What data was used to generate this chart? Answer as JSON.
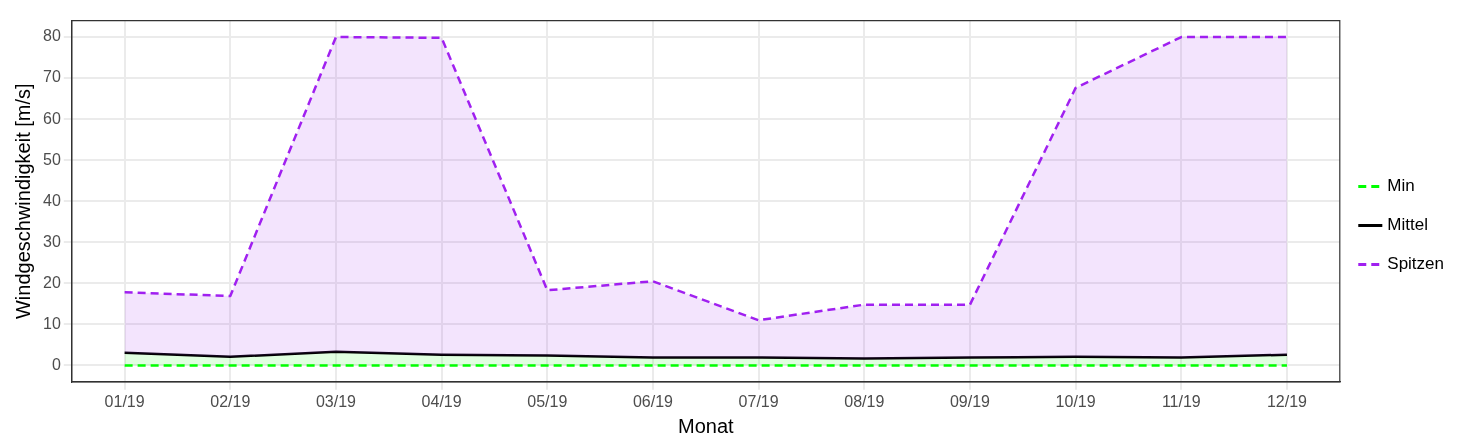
{
  "chart_data": {
    "type": "line",
    "xlabel": "Monat",
    "ylabel": "Windgeschwindigkeit [m/s]",
    "categories": [
      "01/19",
      "02/19",
      "03/19",
      "04/19",
      "05/19",
      "06/19",
      "07/19",
      "08/19",
      "09/19",
      "10/19",
      "11/19",
      "12/19"
    ],
    "ylim": [
      -4,
      84
    ],
    "yticks": [
      0,
      10,
      20,
      30,
      40,
      50,
      60,
      70,
      80
    ],
    "grid": true,
    "legend": "right",
    "marker": "none",
    "series": [
      {
        "name": "Min",
        "type": "line",
        "color": "#00ff00",
        "line_style": "dashed",
        "values": [
          0,
          0,
          0,
          0,
          0,
          0,
          0,
          0,
          0,
          0,
          0,
          0
        ]
      },
      {
        "name": "Mittel",
        "type": "area",
        "color": "#000000",
        "line_style": "solid",
        "values": [
          3.1,
          2.1,
          3.3,
          2.6,
          2.4,
          1.9,
          1.9,
          1.7,
          1.9,
          2.1,
          1.9,
          2.6
        ]
      },
      {
        "name": "Spitzen",
        "type": "area",
        "color": "#a020f0",
        "line_style": "dashed",
        "values": [
          17.8,
          16.9,
          80,
          79.8,
          18.3,
          20.5,
          11,
          14.8,
          14.8,
          67.6,
          80,
          80
        ]
      }
    ]
  }
}
